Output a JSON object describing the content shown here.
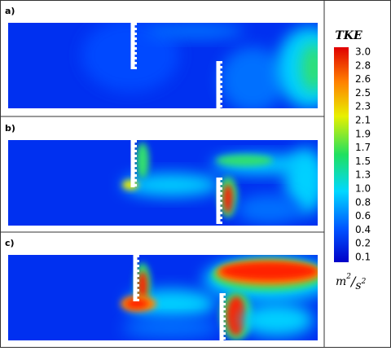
{
  "panels": [
    {
      "label": "a)"
    },
    {
      "label": "b)"
    },
    {
      "label": "c)"
    }
  ],
  "colorbar": {
    "title": "TKE",
    "ticks": [
      "3.0",
      "2.8",
      "2.6",
      "2.5",
      "2.3",
      "2.1",
      "1.9",
      "1.7",
      "1.5",
      "1.3",
      "1.0",
      "0.8",
      "0.6",
      "0.4",
      "0.2",
      "0.1"
    ],
    "unit": {
      "numerator": "m",
      "numerator_power": "2",
      "slash": "/",
      "denominator": "s",
      "denominator_power": "2"
    }
  }
}
